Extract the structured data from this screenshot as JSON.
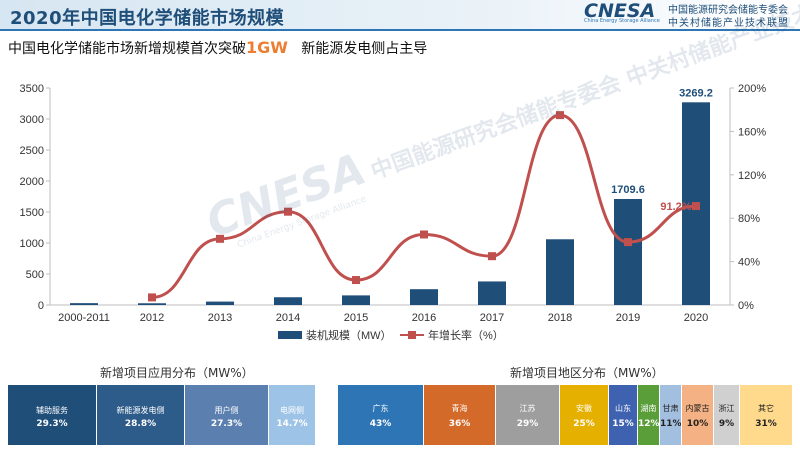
{
  "header": {
    "title": "2020年中国电化学储能市场规模"
  },
  "logo": {
    "mark": "CNESA",
    "sub": "China Energy Storage Alliance",
    "cn_line1": "中国能源研究会储能专委会",
    "cn_line2": "中关村储能产业技术联盟"
  },
  "subtitle": {
    "part1": "中国电化学储能市场新增规模首次突破",
    "highlight": "1GW",
    "part2": "新能源发电侧占主导"
  },
  "watermark": {
    "big": "CNESA",
    "cn": "中国能源研究会储能专委会 中关村储能产业技术联盟",
    "en": "China Energy Storage Alliance"
  },
  "colors": {
    "bar": "#1f4e79",
    "line": "#c0504d",
    "title": "#1f4e79",
    "accent": "#ed7d31"
  },
  "chart_data": {
    "type": "bar",
    "categories": [
      "2000-2011",
      "2012",
      "2013",
      "2014",
      "2015",
      "2016",
      "2017",
      "2018",
      "2019",
      "2020"
    ],
    "series": [
      {
        "name": "装机规模（MW）",
        "type": "bar",
        "axis": "left",
        "values": [
          30,
          28,
          55,
          125,
          155,
          255,
          380,
          1060,
          1709.6,
          3269.2
        ]
      },
      {
        "name": "年增长率（%）",
        "type": "line",
        "axis": "right",
        "values": [
          null,
          7,
          61,
          86,
          23,
          65,
          45,
          175,
          58,
          91.2
        ]
      }
    ],
    "y_left": {
      "min": 0,
      "max": 3500,
      "ticks": [
        "0",
        "500",
        "1000",
        "1500",
        "2000",
        "2500",
        "3000",
        "3500"
      ]
    },
    "y_right": {
      "min": 0,
      "max": 200,
      "ticks": [
        "0%",
        "40%",
        "80%",
        "120%",
        "160%",
        "200%"
      ]
    },
    "data_labels": [
      {
        "index": 8,
        "series": 0,
        "text": "1709.6"
      },
      {
        "index": 9,
        "series": 0,
        "text": "3269.2"
      },
      {
        "index": 9,
        "series": 1,
        "text": "91.2%"
      }
    ],
    "grid": false,
    "legend": "bottom"
  },
  "application_dist": {
    "title": "新增项目应用分布（MW%）",
    "segments": [
      {
        "label": "辅助服务",
        "value": "29.3%",
        "color": "#1f4e79"
      },
      {
        "label": "新能源发电侧",
        "value": "28.8%",
        "color": "#2e5c8a"
      },
      {
        "label": "用户侧",
        "value": "27.3%",
        "color": "#5b80b0"
      },
      {
        "label": "电网侧",
        "value": "14.7%",
        "color": "#9dc3e6"
      }
    ]
  },
  "region_dist": {
    "title": "新增项目地区分布（MW%）",
    "segments": [
      {
        "label": "广东",
        "value": "43%",
        "color": "#2e75b6"
      },
      {
        "label": "青海",
        "value": "36%",
        "color": "#d46a2a"
      },
      {
        "label": "江苏",
        "value": "29%",
        "color": "#9e9e9e"
      },
      {
        "label": "安徽",
        "value": "25%",
        "color": "#e6b000"
      },
      {
        "label": "山东",
        "value": "15%",
        "color": "#3f62b0"
      },
      {
        "label": "湖南",
        "value": "12%",
        "color": "#5a9e3a"
      },
      {
        "label": "甘肃",
        "value": "11%",
        "color": "#a3bfe0"
      },
      {
        "label": "内蒙古",
        "value": "10%",
        "color": "#f4b183"
      },
      {
        "label": "浙江",
        "value": "9%",
        "color": "#d0d0d0"
      },
      {
        "label": "其它",
        "value": "31%",
        "color": "#ffd98c"
      }
    ]
  }
}
